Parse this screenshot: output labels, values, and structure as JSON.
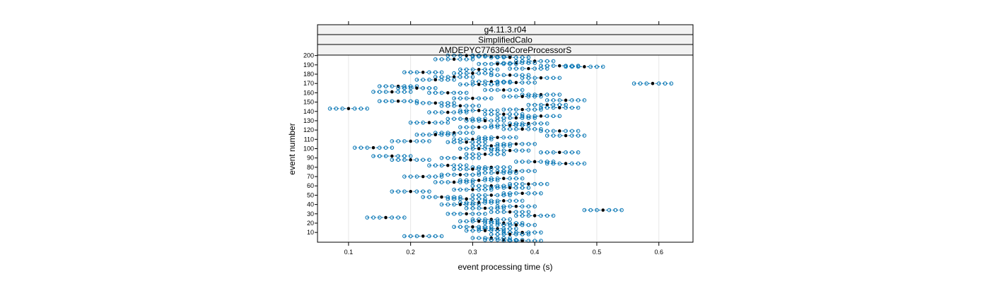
{
  "chart_data": {
    "type": "scatter",
    "title": "",
    "strips": [
      "g4.11.3.r04",
      "SimplifiedCalo",
      "AMDEPYC776364CoreProcessorS"
    ],
    "xlabel": "event processing time (s)",
    "ylabel": "event number",
    "xlim": [
      0.05,
      0.655
    ],
    "ylim": [
      -0.5,
      200.5
    ],
    "x_ticks": [
      0.1,
      0.2,
      0.3,
      0.4,
      0.5,
      0.6
    ],
    "x_tick_labels": [
      "0.1",
      "0.2",
      "0.3",
      "0.4",
      "0.5",
      "0.6"
    ],
    "y_ticks": [
      10,
      20,
      30,
      40,
      50,
      60,
      70,
      80,
      90,
      100,
      110,
      120,
      130,
      140,
      150,
      160,
      170,
      180,
      190,
      200
    ],
    "y_tick_labels": [
      "10",
      "20",
      "30",
      "40",
      "50",
      "60",
      "70",
      "80",
      "90",
      "100",
      "110",
      "120",
      "130",
      "140",
      "150",
      "160",
      "170",
      "180",
      "190",
      "200"
    ],
    "grid": true,
    "marker_colors": {
      "median": "#000000",
      "runs": "#0072B2",
      "whisker": "#0072B2"
    },
    "events": [
      {
        "y": 200,
        "x": 0.29
      },
      {
        "y": 199,
        "x": 0.33
      },
      {
        "y": 198,
        "x": 0.36
      },
      {
        "y": 196,
        "x": 0.27
      },
      {
        "y": 194,
        "x": 0.4
      },
      {
        "y": 192,
        "x": 0.37
      },
      {
        "y": 191,
        "x": 0.34
      },
      {
        "y": 189,
        "x": 0.44
      },
      {
        "y": 188,
        "x": 0.48
      },
      {
        "y": 186,
        "x": 0.39
      },
      {
        "y": 185,
        "x": 0.31
      },
      {
        "y": 182,
        "x": 0.22
      },
      {
        "y": 181,
        "x": 0.3
      },
      {
        "y": 179,
        "x": 0.36
      },
      {
        "y": 177,
        "x": 0.27
      },
      {
        "y": 176,
        "x": 0.41
      },
      {
        "y": 174,
        "x": 0.24
      },
      {
        "y": 172,
        "x": 0.33
      },
      {
        "y": 171,
        "x": 0.37
      },
      {
        "y": 170,
        "x": 0.59
      },
      {
        "y": 169,
        "x": 0.31
      },
      {
        "y": 167,
        "x": 0.18
      },
      {
        "y": 165,
        "x": 0.21
      },
      {
        "y": 163,
        "x": 0.35
      },
      {
        "y": 161,
        "x": 0.17
      },
      {
        "y": 160,
        "x": 0.26
      },
      {
        "y": 158,
        "x": 0.41
      },
      {
        "y": 156,
        "x": 0.38
      },
      {
        "y": 154,
        "x": 0.3
      },
      {
        "y": 152,
        "x": 0.45
      },
      {
        "y": 151,
        "x": 0.18
      },
      {
        "y": 149,
        "x": 0.24
      },
      {
        "y": 147,
        "x": 0.42
      },
      {
        "y": 146,
        "x": 0.28
      },
      {
        "y": 144,
        "x": 0.44
      },
      {
        "y": 143,
        "x": 0.1
      },
      {
        "y": 142,
        "x": 0.38
      },
      {
        "y": 141,
        "x": 0.31
      },
      {
        "y": 139,
        "x": 0.26
      },
      {
        "y": 137,
        "x": 0.35
      },
      {
        "y": 135,
        "x": 0.41
      },
      {
        "y": 133,
        "x": 0.37
      },
      {
        "y": 132,
        "x": 0.29
      },
      {
        "y": 130,
        "x": 0.32
      },
      {
        "y": 128,
        "x": 0.23
      },
      {
        "y": 127,
        "x": 0.39
      },
      {
        "y": 125,
        "x": 0.36
      },
      {
        "y": 123,
        "x": 0.31
      },
      {
        "y": 121,
        "x": 0.38
      },
      {
        "y": 119,
        "x": 0.44
      },
      {
        "y": 117,
        "x": 0.27
      },
      {
        "y": 115,
        "x": 0.24
      },
      {
        "y": 114,
        "x": 0.45
      },
      {
        "y": 112,
        "x": 0.34
      },
      {
        "y": 110,
        "x": 0.3
      },
      {
        "y": 108,
        "x": 0.2
      },
      {
        "y": 107,
        "x": 0.29
      },
      {
        "y": 105,
        "x": 0.37
      },
      {
        "y": 103,
        "x": 0.33
      },
      {
        "y": 101,
        "x": 0.14
      },
      {
        "y": 100,
        "x": 0.31
      },
      {
        "y": 98,
        "x": 0.36
      },
      {
        "y": 96,
        "x": 0.44
      },
      {
        "y": 94,
        "x": 0.32
      },
      {
        "y": 92,
        "x": 0.17
      },
      {
        "y": 90,
        "x": 0.28
      },
      {
        "y": 88,
        "x": 0.2
      },
      {
        "y": 86,
        "x": 0.4
      },
      {
        "y": 84,
        "x": 0.45
      },
      {
        "y": 82,
        "x": 0.26
      },
      {
        "y": 80,
        "x": 0.33
      },
      {
        "y": 78,
        "x": 0.3
      },
      {
        "y": 76,
        "x": 0.37
      },
      {
        "y": 74,
        "x": 0.34
      },
      {
        "y": 72,
        "x": 0.28
      },
      {
        "y": 70,
        "x": 0.22
      },
      {
        "y": 68,
        "x": 0.35
      },
      {
        "y": 66,
        "x": 0.31
      },
      {
        "y": 64,
        "x": 0.27
      },
      {
        "y": 62,
        "x": 0.39
      },
      {
        "y": 60,
        "x": 0.33
      },
      {
        "y": 58,
        "x": 0.36
      },
      {
        "y": 56,
        "x": 0.3
      },
      {
        "y": 54,
        "x": 0.2
      },
      {
        "y": 52,
        "x": 0.38
      },
      {
        "y": 50,
        "x": 0.33
      },
      {
        "y": 48,
        "x": 0.25
      },
      {
        "y": 46,
        "x": 0.29
      },
      {
        "y": 44,
        "x": 0.35
      },
      {
        "y": 42,
        "x": 0.31
      },
      {
        "y": 40,
        "x": 0.28
      },
      {
        "y": 38,
        "x": 0.37
      },
      {
        "y": 36,
        "x": 0.32
      },
      {
        "y": 34,
        "x": 0.51
      },
      {
        "y": 32,
        "x": 0.36
      },
      {
        "y": 30,
        "x": 0.29
      },
      {
        "y": 28,
        "x": 0.4
      },
      {
        "y": 26,
        "x": 0.16
      },
      {
        "y": 24,
        "x": 0.33
      },
      {
        "y": 22,
        "x": 0.31
      },
      {
        "y": 20,
        "x": 0.35
      },
      {
        "y": 18,
        "x": 0.37
      },
      {
        "y": 16,
        "x": 0.3
      },
      {
        "y": 14,
        "x": 0.34
      },
      {
        "y": 12,
        "x": 0.32
      },
      {
        "y": 10,
        "x": 0.38
      },
      {
        "y": 8,
        "x": 0.36
      },
      {
        "y": 6,
        "x": 0.22
      },
      {
        "y": 4,
        "x": 0.33
      },
      {
        "y": 2,
        "x": 0.35
      },
      {
        "y": 1,
        "x": 0.38
      }
    ],
    "run_spread": [
      -0.03,
      -0.02,
      -0.01,
      0.0,
      0.01,
      0.02,
      0.03
    ]
  }
}
